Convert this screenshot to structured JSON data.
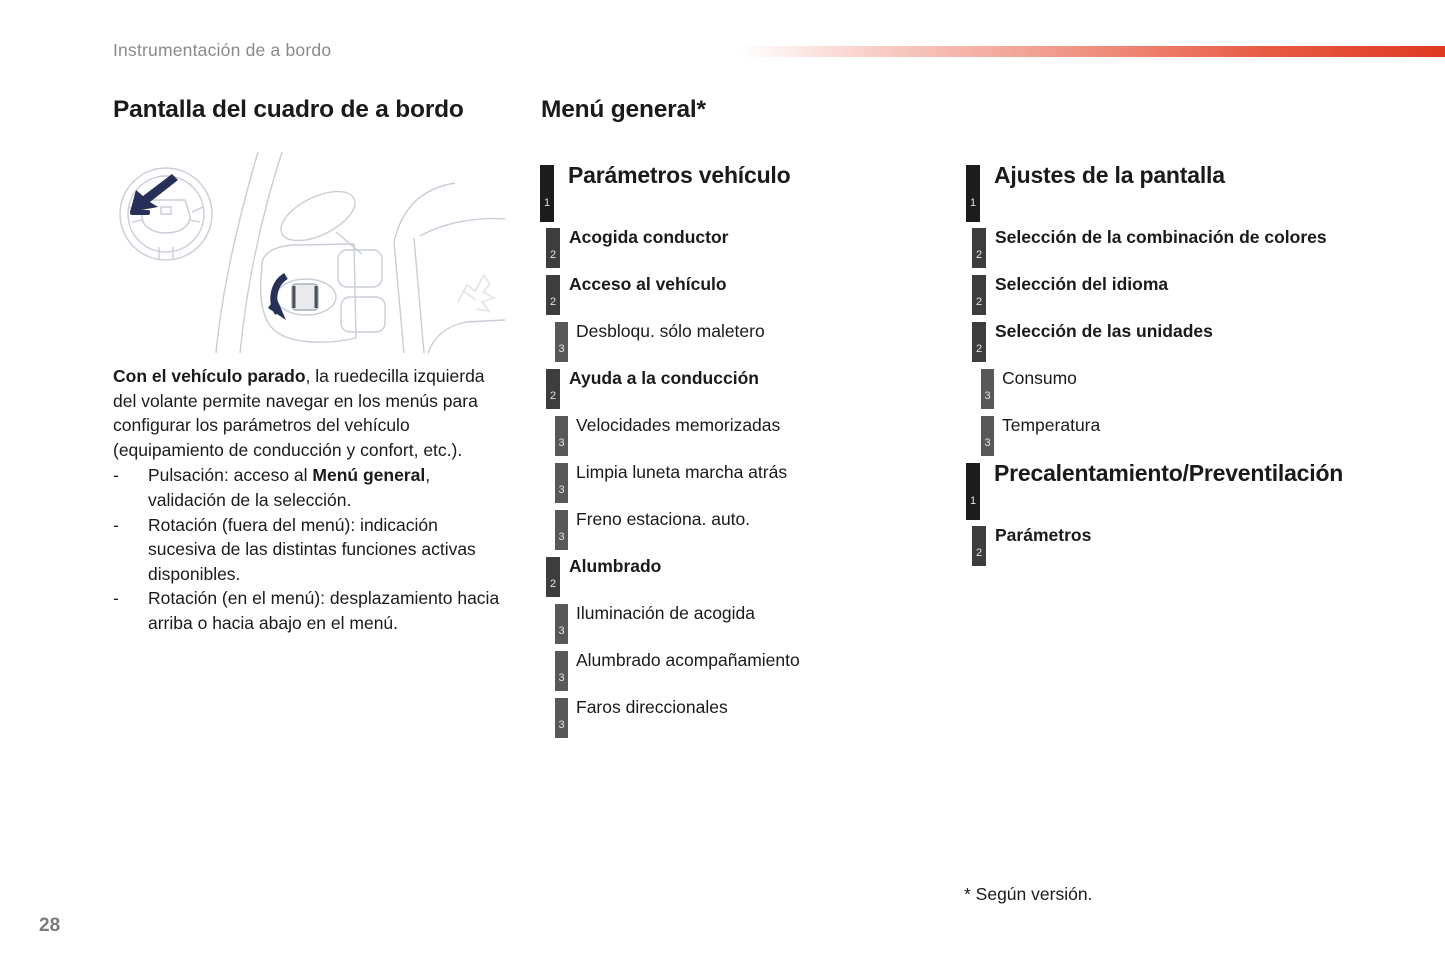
{
  "page": {
    "header": "Instrumentación de a bordo",
    "page_number": "28",
    "footnote": "* Según versión."
  },
  "left_column": {
    "title": "Pantalla del cuadro de a bordo",
    "illustration": "steering-wheel-with-left-thumbwheel-and-navy-arrows",
    "paragraph": {
      "bold_lead": "Con el vehículo parado",
      "rest": ", la ruedecilla izquierda del volante permite navegar en los menús para configurar los parámetros del vehículo (equipamiento de conducción y confort, etc.)."
    },
    "bullet_marker": "-",
    "bullets": [
      {
        "pre": "Pulsación: acceso al ",
        "bold": "Menú general",
        "post": ", validación de la selección."
      },
      {
        "pre": "Rotación (fuera del menú): indicación sucesiva de las distintas funciones activas disponibles.",
        "bold": "",
        "post": ""
      },
      {
        "pre": "Rotación (en el menú): desplazamiento hacia arriba o hacia abajo en el menú.",
        "bold": "",
        "post": ""
      }
    ]
  },
  "menu": {
    "title": "Menú general*",
    "column1": [
      {
        "level": 1,
        "label": "Parámetros vehículo"
      },
      {
        "level": 2,
        "label": "Acogida conductor"
      },
      {
        "level": 2,
        "label": "Acceso al vehículo"
      },
      {
        "level": 3,
        "label": "Desbloqu. sólo maletero"
      },
      {
        "level": 2,
        "label": "Ayuda a la conducción"
      },
      {
        "level": 3,
        "label": "Velocidades memorizadas"
      },
      {
        "level": 3,
        "label": "Limpia luneta marcha atrás"
      },
      {
        "level": 3,
        "label": "Freno estaciona. auto."
      },
      {
        "level": 2,
        "label": "Alumbrado"
      },
      {
        "level": 3,
        "label": "Iluminación de acogida"
      },
      {
        "level": 3,
        "label": "Alumbrado acompañamiento"
      },
      {
        "level": 3,
        "label": "Faros direccionales"
      }
    ],
    "column2": [
      {
        "level": 1,
        "label": "Ajustes de la pantalla"
      },
      {
        "level": 2,
        "label": "Selección de la combinación de colores"
      },
      {
        "level": 2,
        "label": "Selección del idioma"
      },
      {
        "level": 2,
        "label": "Selección de las unidades"
      },
      {
        "level": 3,
        "label": "Consumo"
      },
      {
        "level": 3,
        "label": "Temperatura"
      },
      {
        "level": 1,
        "label": "Precalentamiento/Preventilación"
      },
      {
        "level": 2,
        "label": "Parámetros"
      }
    ]
  },
  "colors": {
    "accent_bar_red": "#df3a20",
    "level1_tab": "#1c1c1c",
    "level2_tab": "#3d3d3d",
    "level3_tab": "#585858",
    "header_gray": "#8a8a8a",
    "arrow_navy": "#273058"
  }
}
